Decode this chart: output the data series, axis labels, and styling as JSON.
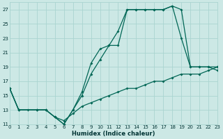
{
  "xlabel": "Humidex (Indice chaleur)",
  "bg_color": "#cce8e5",
  "grid_color": "#aad4d0",
  "line_color": "#006655",
  "xlim": [
    0,
    23
  ],
  "ylim": [
    11,
    28
  ],
  "yticks": [
    11,
    13,
    15,
    17,
    19,
    21,
    23,
    25,
    27
  ],
  "xticks": [
    0,
    1,
    2,
    3,
    4,
    5,
    6,
    7,
    8,
    9,
    10,
    11,
    12,
    13,
    14,
    15,
    16,
    17,
    18,
    19,
    20,
    21,
    22,
    23
  ],
  "series": [
    {
      "x": [
        0,
        1,
        2,
        3,
        4,
        5,
        6,
        7,
        8,
        9,
        10,
        11,
        12,
        13,
        14,
        15,
        16,
        17,
        18,
        19,
        20,
        21,
        22,
        23
      ],
      "y": [
        16,
        13,
        13,
        13,
        13,
        12,
        11.5,
        12.5,
        13.5,
        14,
        14.5,
        15,
        15.5,
        16,
        16,
        16.5,
        17,
        17,
        17.5,
        18,
        18,
        18,
        18.5,
        19
      ]
    },
    {
      "x": [
        0,
        1,
        3,
        4,
        5,
        6,
        7,
        8,
        9,
        10,
        11,
        12,
        13,
        14,
        15,
        16,
        17,
        18,
        19,
        20,
        21,
        22,
        23
      ],
      "y": [
        16,
        13,
        13,
        13,
        12,
        11,
        13,
        15,
        18,
        20,
        22,
        22,
        27,
        27,
        27,
        27,
        27,
        27.5,
        27,
        19,
        19,
        19,
        19
      ]
    },
    {
      "x": [
        0,
        1,
        3,
        4,
        5,
        6,
        7,
        8,
        9,
        10,
        11,
        12,
        13,
        14,
        15,
        16,
        17,
        18,
        19,
        20,
        21,
        22,
        23
      ],
      "y": [
        16,
        13,
        13,
        13,
        12,
        11,
        13,
        15.5,
        19.5,
        21.5,
        22,
        24,
        27,
        27,
        27,
        27,
        27,
        27.5,
        23,
        19,
        19,
        19,
        18.5
      ]
    }
  ]
}
